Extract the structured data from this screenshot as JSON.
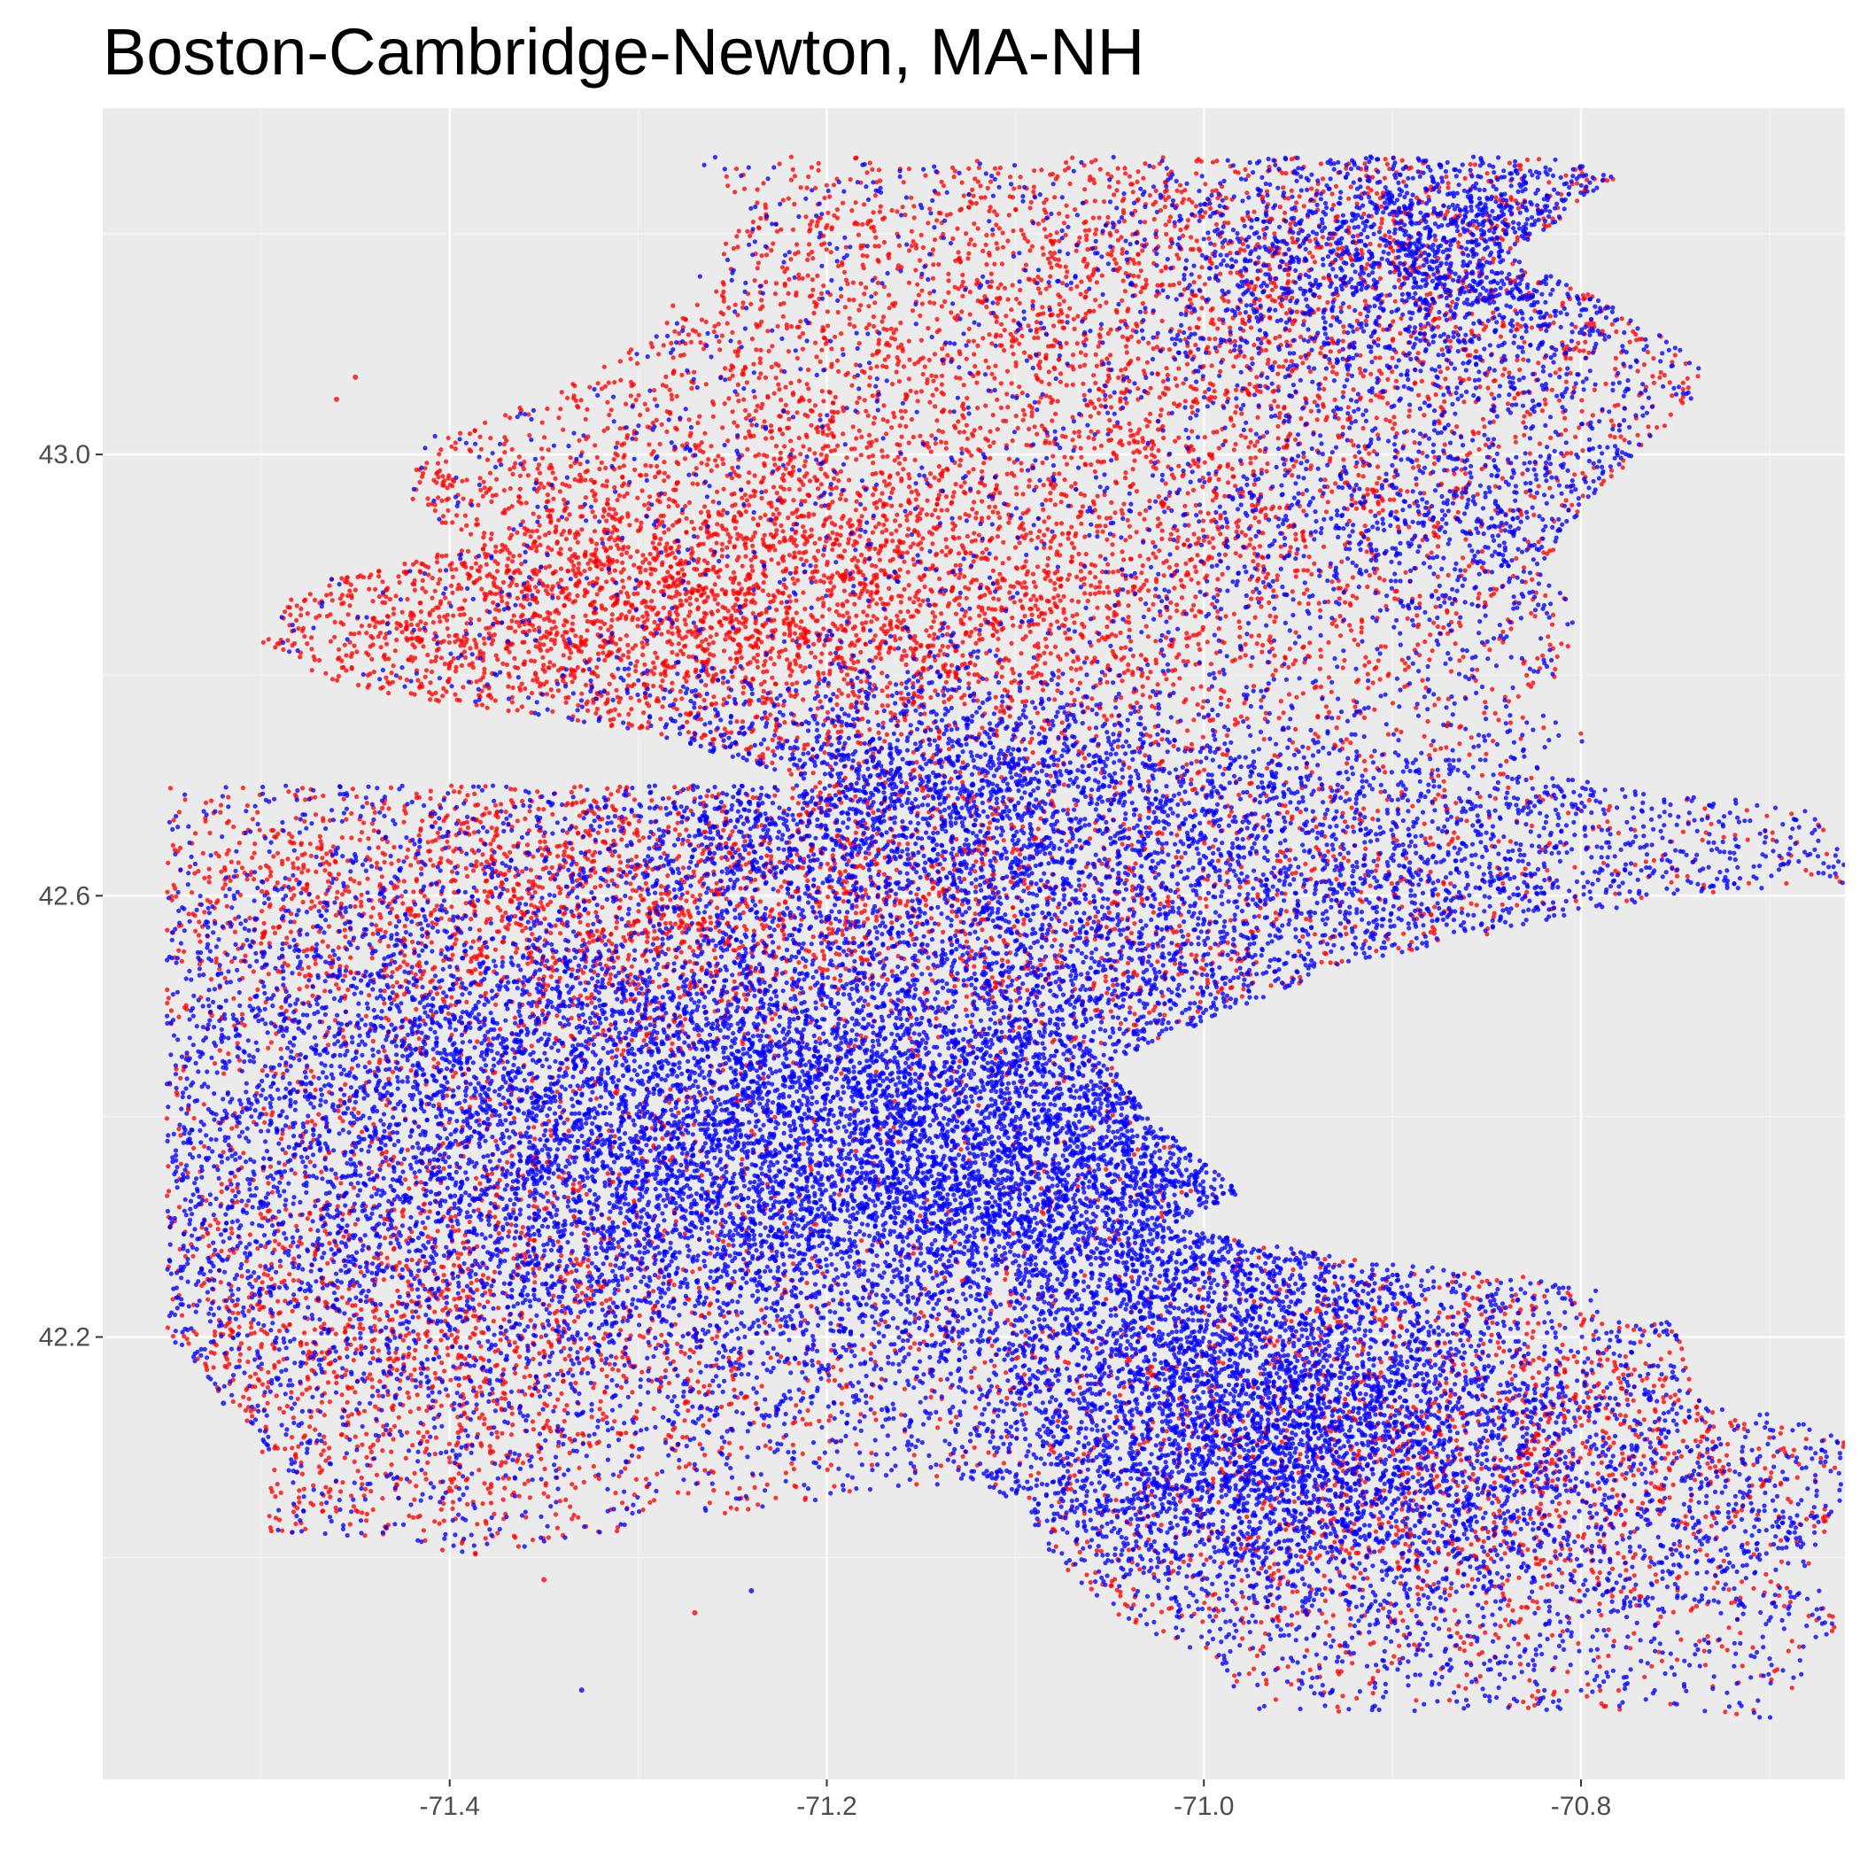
{
  "chart_data": {
    "type": "scatter",
    "title": "Boston-Cambridge-Newton, MA-NH",
    "xlabel": "",
    "ylabel": "",
    "xlim": [
      -71.584,
      -70.66
    ],
    "ylim": [
      41.799,
      43.314
    ],
    "x_ticks": [
      {
        "value": -71.4,
        "label": "-71.4"
      },
      {
        "value": -71.2,
        "label": "-71.2"
      },
      {
        "value": -71.0,
        "label": "-71.0"
      },
      {
        "value": -70.8,
        "label": "-70.8"
      }
    ],
    "x_minor_ticks": [
      -71.5,
      -71.3,
      -71.1,
      -70.9,
      -70.7
    ],
    "y_ticks": [
      {
        "value": 42.2,
        "label": "42.2"
      },
      {
        "value": 42.6,
        "label": "42.6"
      },
      {
        "value": 43.0,
        "label": "43.0"
      }
    ],
    "y_minor_ticks": [
      42.0,
      42.4,
      42.8,
      43.2
    ],
    "grid": true,
    "legend": "none",
    "colors": {
      "panel_background": "#ebebeb",
      "grid_major": "#ffffff",
      "grid_minor": "#f5f5f5",
      "red_points": "#ff0000",
      "blue_points": "#0000ff",
      "tick_text": "#4d4d4d",
      "tick_mark": "#333333"
    },
    "series": [
      {
        "color": "#ff0000",
        "density_regions": [
          {
            "center": [
              -71.12,
              42.96
            ],
            "spread": [
              0.2,
              0.14
            ],
            "weight": 4
          },
          {
            "center": [
              -71.3,
              42.86
            ],
            "spread": [
              0.14,
              0.07
            ],
            "weight": 3
          },
          {
            "center": [
              -70.96,
              43.18
            ],
            "spread": [
              0.2,
              0.08
            ],
            "weight": 2
          },
          {
            "center": [
              -71.35,
              42.6
            ],
            "spread": [
              0.15,
              0.07
            ],
            "weight": 2
          },
          {
            "center": [
              -71.42,
              42.2
            ],
            "spread": [
              0.1,
              0.12
            ],
            "weight": 2
          },
          {
            "center": [
              -70.85,
              42.1
            ],
            "spread": [
              0.15,
              0.1
            ],
            "weight": 2
          },
          {
            "center": [
              -71.1,
              42.58
            ],
            "spread": [
              0.2,
              0.06
            ],
            "weight": 1
          }
        ],
        "outliers": [
          [
            -71.45,
            43.07
          ],
          [
            -71.46,
            43.05
          ],
          [
            -71.27,
            41.95
          ],
          [
            -71.35,
            41.98
          ]
        ]
      },
      {
        "color": "#0000ff",
        "density_regions": [
          {
            "center": [
              -71.07,
              42.34
            ],
            "spread": [
              0.14,
              0.09
            ],
            "weight": 5
          },
          {
            "center": [
              -71.2,
              42.44
            ],
            "spread": [
              0.17,
              0.1
            ],
            "weight": 4
          },
          {
            "center": [
              -71.4,
              42.35
            ],
            "spread": [
              0.15,
              0.15
            ],
            "weight": 4
          },
          {
            "center": [
              -70.97,
              42.12
            ],
            "spread": [
              0.08,
              0.08
            ],
            "weight": 3
          },
          {
            "center": [
              -70.9,
              42.62
            ],
            "spread": [
              0.15,
              0.07
            ],
            "weight": 2
          },
          {
            "center": [
              -70.87,
              43.18
            ],
            "spread": [
              0.08,
              0.06
            ],
            "weight": 2
          },
          {
            "center": [
              -71.15,
              42.69
            ],
            "spread": [
              0.1,
              0.06
            ],
            "weight": 2
          },
          {
            "center": [
              -70.85,
              42.05
            ],
            "spread": [
              0.15,
              0.1
            ],
            "weight": 2
          },
          {
            "center": [
              -70.85,
              42.95
            ],
            "spread": [
              0.1,
              0.06
            ],
            "weight": 1
          }
        ],
        "outliers": [
          [
            -71.33,
            41.88
          ],
          [
            -71.24,
            41.97
          ],
          [
            -71.52,
            42.14
          ],
          [
            -71.48,
            42.12
          ]
        ]
      }
    ]
  }
}
